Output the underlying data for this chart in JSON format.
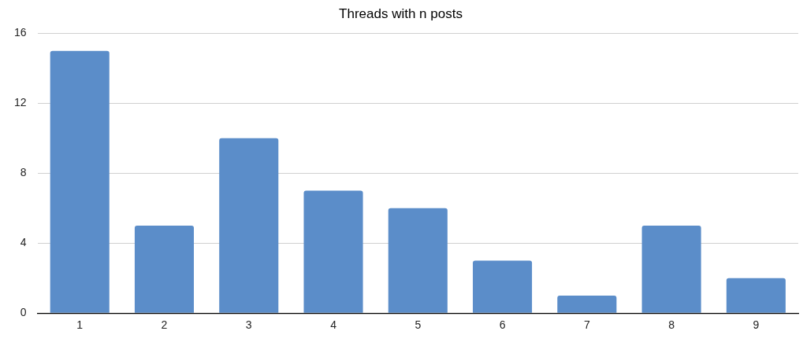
{
  "chart_data": {
    "type": "bar",
    "title": "Threads with n posts",
    "categories": [
      "1",
      "2",
      "3",
      "4",
      "5",
      "6",
      "7",
      "8",
      "9"
    ],
    "values": [
      15,
      5,
      10,
      7,
      6,
      3,
      1,
      5,
      2
    ],
    "color": "#5b8dc9",
    "ylim": [
      0,
      16
    ],
    "yticks": [
      0,
      4,
      8,
      12,
      16
    ],
    "grid": "y"
  }
}
